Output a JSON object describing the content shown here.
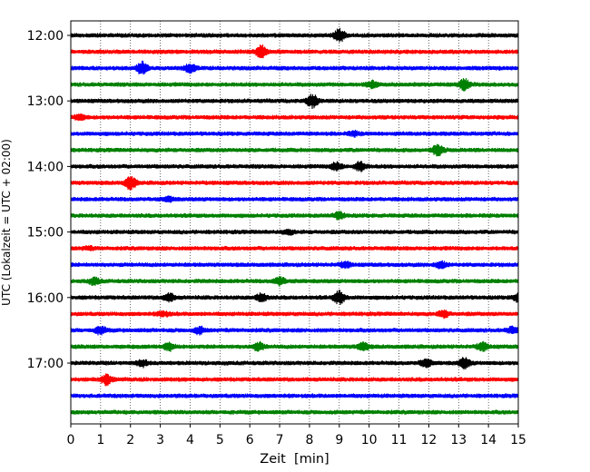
{
  "chart_data": {
    "type": "line",
    "title": "",
    "xlabel": "Zeit  [min]",
    "ylabel": "UTC (Lokalzeit = UTC + 02:00)",
    "xlim": [
      0,
      15
    ],
    "x_ticks": [
      "0",
      "1",
      "2",
      "3",
      "4",
      "5",
      "6",
      "7",
      "8",
      "9",
      "10",
      "11",
      "12",
      "13",
      "14",
      "15"
    ],
    "y_ticks": [
      "12:00",
      "13:00",
      "14:00",
      "15:00",
      "16:00",
      "17:00"
    ],
    "grid": "vertical dotted",
    "trace_colors": [
      "#000000",
      "#ff0000",
      "#0000ff",
      "#008000"
    ],
    "trace_start_times": [
      "12:00",
      "12:15",
      "12:30",
      "12:45",
      "13:00",
      "13:15",
      "13:30",
      "13:45",
      "14:00",
      "14:15",
      "14:30",
      "14:45",
      "15:00",
      "15:15",
      "15:30",
      "15:45",
      "16:00",
      "16:15",
      "16:30",
      "16:45",
      "17:00",
      "17:15",
      "17:30",
      "17:45"
    ],
    "series": [
      {
        "bursts": [
          [
            9.0,
            1.0
          ]
        ]
      },
      {
        "bursts": [
          [
            6.4,
            1.0
          ]
        ]
      },
      {
        "bursts": [
          [
            2.4,
            1.0
          ],
          [
            4.0,
            0.7
          ]
        ]
      },
      {
        "bursts": [
          [
            13.2,
            0.8
          ],
          [
            10.1,
            0.5
          ]
        ]
      },
      {
        "bursts": [
          [
            8.1,
            1.0
          ]
        ]
      },
      {
        "bursts": [
          [
            0.3,
            0.4
          ]
        ]
      },
      {
        "bursts": [
          [
            9.5,
            0.3
          ]
        ]
      },
      {
        "bursts": [
          [
            12.3,
            0.8
          ]
        ]
      },
      {
        "bursts": [
          [
            9.7,
            0.7
          ],
          [
            8.9,
            0.6
          ]
        ]
      },
      {
        "bursts": [
          [
            2.0,
            1.0
          ]
        ]
      },
      {
        "bursts": [
          [
            3.3,
            0.3
          ]
        ]
      },
      {
        "bursts": [
          [
            9.0,
            0.5
          ]
        ]
      },
      {
        "bursts": [
          [
            7.3,
            0.3
          ]
        ]
      },
      {
        "bursts": [
          [
            0.6,
            0.2
          ]
        ]
      },
      {
        "bursts": [
          [
            12.4,
            0.5
          ],
          [
            9.2,
            0.4
          ]
        ]
      },
      {
        "bursts": [
          [
            0.8,
            0.5
          ],
          [
            7.0,
            0.6
          ]
        ]
      },
      {
        "bursts": [
          [
            9.0,
            1.0
          ],
          [
            3.3,
            0.6
          ],
          [
            6.4,
            0.6
          ],
          [
            15.0,
            0.6
          ]
        ]
      },
      {
        "bursts": [
          [
            12.5,
            0.5
          ],
          [
            3.1,
            0.4
          ]
        ]
      },
      {
        "bursts": [
          [
            1.0,
            0.6
          ],
          [
            4.3,
            0.5
          ],
          [
            14.8,
            0.5
          ]
        ]
      },
      {
        "bursts": [
          [
            3.3,
            0.6
          ],
          [
            6.3,
            0.6
          ],
          [
            9.8,
            0.6
          ],
          [
            13.8,
            0.6
          ]
        ]
      },
      {
        "bursts": [
          [
            13.2,
            0.8
          ],
          [
            11.9,
            0.6
          ],
          [
            2.4,
            0.5
          ]
        ]
      },
      {
        "bursts": [
          [
            1.2,
            0.8
          ]
        ]
      },
      {
        "bursts": []
      },
      {
        "bursts": []
      }
    ]
  }
}
